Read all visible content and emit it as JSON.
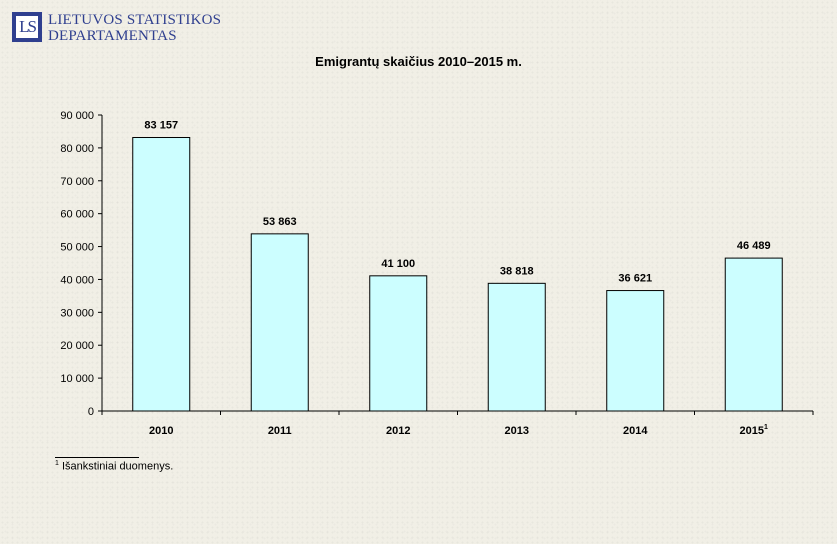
{
  "header": {
    "logo_mark": "LS",
    "org_line1": "LIETUVOS STATISTIKOS",
    "org_line2": "DEPARTAMENTAS"
  },
  "footnote": {
    "marker": "1",
    "text": "Išankstiniai duomenys."
  },
  "chart_data": {
    "type": "bar",
    "title": "Emigrantų skaičius 2010–2015 m.",
    "xlabel": "",
    "ylabel": "",
    "categories": [
      "2010",
      "2011",
      "2012",
      "2013",
      "2014",
      "2015"
    ],
    "category_superscripts": [
      "",
      "",
      "",
      "",
      "",
      "1"
    ],
    "values": [
      83157,
      53863,
      41100,
      38818,
      36621,
      46489
    ],
    "value_labels": [
      "83 157",
      "53 863",
      "41 100",
      "38 818",
      "36 621",
      "46 489"
    ],
    "ylim": [
      0,
      90000
    ],
    "y_ticks": [
      0,
      10000,
      20000,
      30000,
      40000,
      50000,
      60000,
      70000,
      80000,
      90000
    ],
    "y_tick_labels": [
      "0",
      "10 000",
      "20 000",
      "30 000",
      "40 000",
      "50 000",
      "60 000",
      "70 000",
      "80 000",
      "90 000"
    ],
    "grid": false,
    "colors": {
      "bar_fill": "#ccfeff",
      "bar_stroke": "#000000"
    }
  }
}
